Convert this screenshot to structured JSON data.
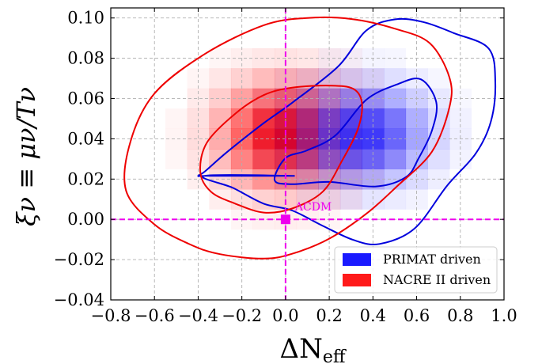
{
  "chart_data": {
    "type": "heatmap",
    "xlabel_main": "ΔN",
    "xlabel_sub": "eff",
    "ylabel": "ξν ≡ μν/Tν",
    "xlim": [
      -0.8,
      1.0
    ],
    "ylim": [
      -0.04,
      0.105
    ],
    "x_ticks": [
      -0.8,
      -0.6,
      -0.4,
      -0.2,
      0.0,
      0.2,
      0.4,
      0.6,
      0.8,
      1.0
    ],
    "x_tick_labels": [
      "−0.8",
      "−0.6",
      "−0.4",
      "−0.2",
      "0.0",
      "0.2",
      "0.4",
      "0.6",
      "0.8",
      "1.0"
    ],
    "y_ticks": [
      -0.04,
      -0.02,
      0.0,
      0.02,
      0.04,
      0.06,
      0.08,
      0.1
    ],
    "y_tick_labels": [
      "−0.04",
      "−0.02",
      "0.00",
      "0.02",
      "0.04",
      "0.06",
      "0.08",
      "0.10"
    ],
    "grid": true,
    "legend_position": "lower-right",
    "series": [
      {
        "name": "PRIMAT driven",
        "color": "#0000dd",
        "legend_color": "#1a1aff",
        "center": [
          0.35,
          0.042
        ],
        "contours": [
          [
            [
              0.03,
              0.0216
            ],
            [
              -0.1,
              0.0216
            ],
            [
              -0.24,
              0.0216
            ],
            [
              -0.37,
              0.0216
            ],
            [
              -0.4,
              0.0216
            ],
            [
              -0.37,
              0.0237
            ],
            [
              -0.27,
              0.0332
            ],
            [
              -0.1,
              0.0478
            ],
            [
              0.03,
              0.0579
            ],
            [
              0.24,
              0.0759
            ],
            [
              0.37,
              0.0938
            ],
            [
              0.5,
              0.0993
            ],
            [
              0.63,
              0.098
            ],
            [
              0.77,
              0.0925
            ],
            [
              0.93,
              0.0848
            ],
            [
              0.96,
              0.0678
            ],
            [
              0.94,
              0.0486
            ],
            [
              0.87,
              0.0326
            ],
            [
              0.74,
              0.0168
            ],
            [
              0.59,
              -0.0046
            ],
            [
              0.43,
              -0.0122
            ],
            [
              0.31,
              -0.0102
            ],
            [
              0.17,
              -0.0032
            ],
            [
              0.03,
              0.0044
            ],
            [
              -0.1,
              0.0078
            ],
            [
              -0.24,
              0.0156
            ],
            [
              -0.37,
              0.0216
            ]
          ],
          [
            [
              -0.05,
              0.0195
            ],
            [
              0.0,
              0.0304
            ],
            [
              0.1,
              0.0343
            ],
            [
              0.23,
              0.0418
            ],
            [
              0.37,
              0.0594
            ],
            [
              0.51,
              0.067
            ],
            [
              0.62,
              0.0695
            ],
            [
              0.69,
              0.0581
            ],
            [
              0.67,
              0.0441
            ],
            [
              0.61,
              0.0305
            ],
            [
              0.55,
              0.0209
            ],
            [
              0.41,
              0.0163
            ],
            [
              0.2,
              0.0186
            ],
            [
              0.03,
              0.0175
            ],
            [
              -0.05,
              0.0195
            ]
          ]
        ]
      },
      {
        "name": "NACRE II driven",
        "color": "#ee0000",
        "legend_color": "#ff1a1a",
        "center": [
          0.0,
          0.042
        ],
        "contours": [
          [
            [
              -0.73,
              0.0143
            ],
            [
              -0.71,
              0.0386
            ],
            [
              -0.6,
              0.0625
            ],
            [
              -0.37,
              0.0821
            ],
            [
              -0.1,
              0.0964
            ],
            [
              0.1,
              0.1
            ],
            [
              0.3,
              0.0995
            ],
            [
              0.5,
              0.0947
            ],
            [
              0.66,
              0.0875
            ],
            [
              0.75,
              0.0705
            ],
            [
              0.75,
              0.0557
            ],
            [
              0.67,
              0.0336
            ],
            [
              0.51,
              0.0164
            ],
            [
              0.37,
              0.0028
            ],
            [
              0.2,
              -0.0096
            ],
            [
              0.03,
              -0.0171
            ],
            [
              -0.1,
              -0.0195
            ],
            [
              -0.3,
              -0.0173
            ],
            [
              -0.44,
              -0.0123
            ],
            [
              -0.6,
              -0.0025
            ],
            [
              -0.73,
              0.0143
            ]
          ],
          [
            [
              -0.39,
              0.0234
            ],
            [
              -0.36,
              0.0381
            ],
            [
              -0.23,
              0.0525
            ],
            [
              -0.1,
              0.0617
            ],
            [
              0.03,
              0.0654
            ],
            [
              0.2,
              0.0664
            ],
            [
              0.31,
              0.0648
            ],
            [
              0.35,
              0.0575
            ],
            [
              0.33,
              0.0445
            ],
            [
              0.26,
              0.0294
            ],
            [
              0.17,
              0.0137
            ],
            [
              0.03,
              0.0054
            ],
            [
              -0.1,
              0.0034
            ],
            [
              -0.23,
              0.0078
            ],
            [
              -0.34,
              0.0136
            ],
            [
              -0.39,
              0.0234
            ]
          ]
        ]
      }
    ],
    "annotations": [
      {
        "label": "ΛCDM",
        "x": 0.0,
        "y": 0.0,
        "color": "#ee00ee"
      }
    ],
    "reference_lines": {
      "x": 0.0,
      "y": 0.0,
      "color": "#ee00ee"
    }
  }
}
